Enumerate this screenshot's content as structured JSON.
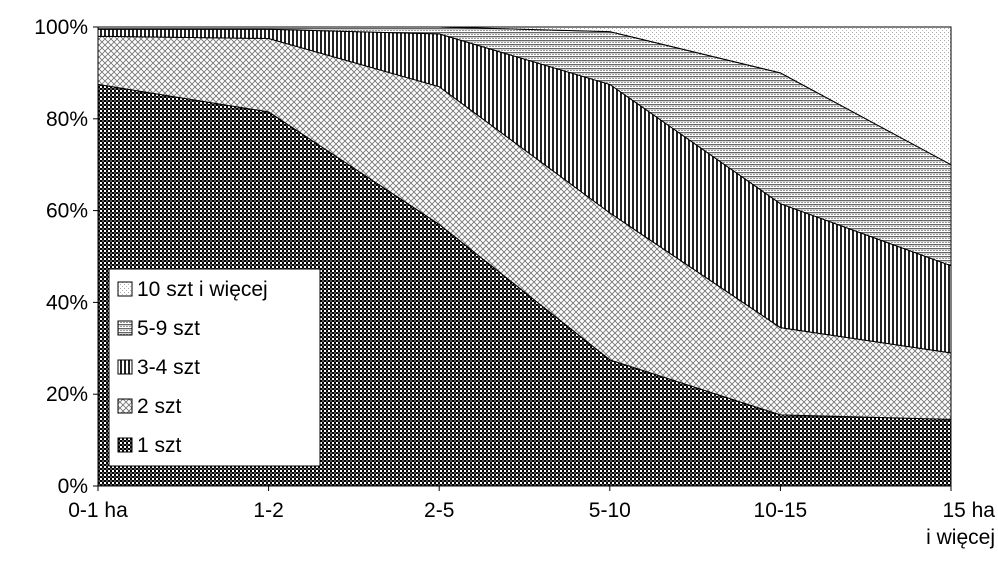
{
  "chart_data": {
    "type": "area",
    "stacked": "percent",
    "categories": [
      "0-1 ha",
      "1-2",
      "2-5",
      "5-10",
      "10-15",
      "15 ha\ni więcej"
    ],
    "series": [
      {
        "name": "1 szt",
        "values": [
          87.5,
          81.5,
          57,
          27.5,
          15.5,
          14.5
        ]
      },
      {
        "name": "2 szt",
        "values": [
          10.5,
          16,
          30,
          32,
          19,
          14.5
        ]
      },
      {
        "name": "3-4 szt",
        "values": [
          1.5,
          2,
          11.5,
          28,
          27,
          19
        ]
      },
      {
        "name": "5-9 szt",
        "values": [
          0.5,
          0.5,
          1.5,
          11.5,
          28.5,
          22
        ]
      },
      {
        "name": "10 szt i więcej",
        "values": [
          0,
          0,
          0,
          1,
          10,
          30
        ]
      }
    ],
    "ylim": [
      0,
      100
    ],
    "yticks": [
      "0%",
      "20%",
      "40%",
      "60%",
      "80%",
      "100%"
    ],
    "legend_position": "bottom-left inside",
    "legend_order": [
      "10 szt i więcej",
      "5-9 szt",
      "3-4 szt",
      "2 szt",
      "1 szt"
    ],
    "grid": false
  }
}
